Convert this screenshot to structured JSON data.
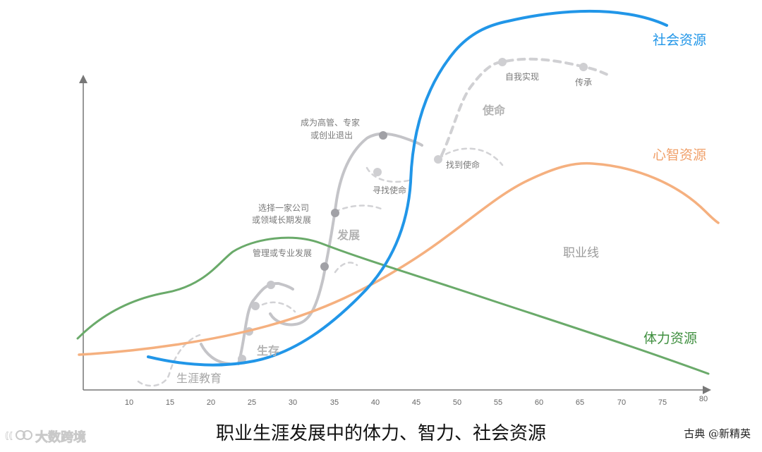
{
  "caption": "职业生涯发展中的体力、智力、社会资源",
  "credit": "古典 @新精英",
  "watermark": "大数跨境",
  "x_ticks": [
    "10",
    "15",
    "20",
    "25",
    "30",
    "35",
    "40",
    "45",
    "50",
    "55",
    "60",
    "65",
    "70",
    "75",
    "80"
  ],
  "labels": {
    "social": "社会资源",
    "mind": "心智资源",
    "physical": "体力资源",
    "career_line": "职业线",
    "education": "生涯教育",
    "survival": "生存",
    "development": "发展",
    "mission": "使命",
    "mgmt": "管理或专业发展",
    "company_1": "选择一家公司",
    "company_2": "或领域长期发展",
    "exec_1": "成为高管、专家",
    "exec_2": "或创业退出",
    "seek": "寻找使命",
    "find": "找到使命",
    "self": "自我实现",
    "legacy": "传承"
  },
  "colors": {
    "social": "#2196e8",
    "mind": "#f5b07f",
    "physical": "#6aaa6a",
    "career": "#c4c4c8",
    "dots": "#9e9ea3"
  }
}
